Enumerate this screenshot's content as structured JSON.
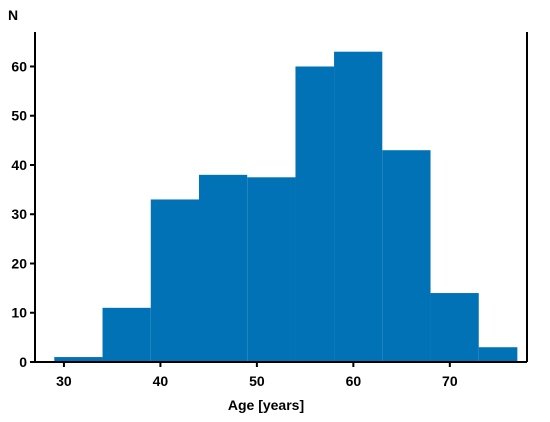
{
  "chart_data": {
    "type": "bar",
    "histogram": true,
    "xlabel": "Age [years]",
    "ylabel": "N",
    "xlim": [
      27,
      78
    ],
    "ylim": [
      0,
      67
    ],
    "x_ticks": [
      30,
      40,
      50,
      60,
      70
    ],
    "y_ticks": [
      0,
      10,
      20,
      30,
      40,
      50,
      60
    ],
    "bar_color": "#0072b5",
    "grid": false,
    "bins": [
      {
        "x0": 29,
        "x1": 34,
        "value": 1
      },
      {
        "x0": 34,
        "x1": 39,
        "value": 11
      },
      {
        "x0": 39,
        "x1": 44,
        "value": 33
      },
      {
        "x0": 44,
        "x1": 49,
        "value": 38
      },
      {
        "x0": 49,
        "x1": 54,
        "value": 37.5
      },
      {
        "x0": 54,
        "x1": 58,
        "value": 60
      },
      {
        "x0": 58,
        "x1": 63,
        "value": 63
      },
      {
        "x0": 63,
        "x1": 68,
        "value": 43
      },
      {
        "x0": 68,
        "x1": 73,
        "value": 14
      },
      {
        "x0": 73,
        "x1": 77,
        "value": 3
      }
    ]
  }
}
